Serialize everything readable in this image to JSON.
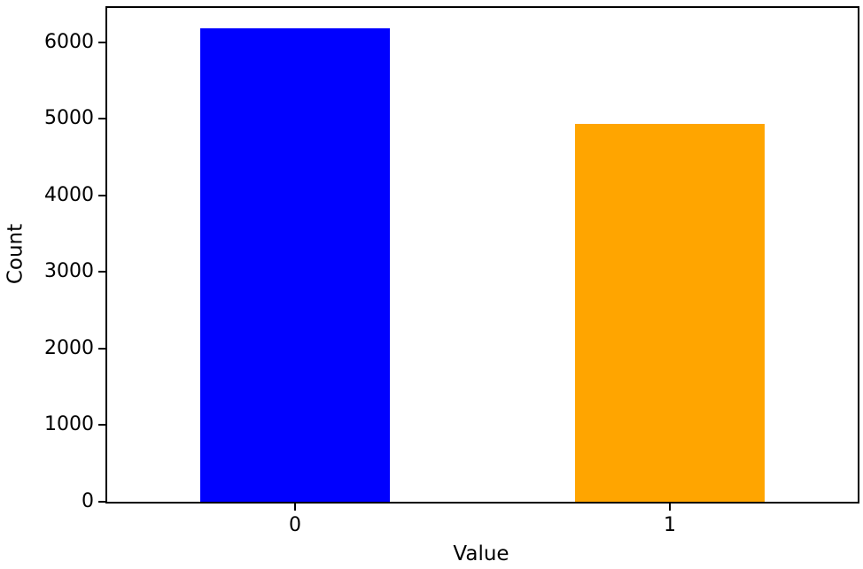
{
  "figure": {
    "background": "#ffffff",
    "axis_color": "#000000"
  },
  "chart_data": {
    "type": "bar",
    "title": "",
    "xlabel": "Value",
    "ylabel": "Count",
    "categories": [
      "0",
      "1"
    ],
    "values": [
      6180,
      4930
    ],
    "bar_colors": [
      "#0000ff",
      "#ffa500"
    ],
    "ylim": [
      0,
      6450
    ],
    "yticks": [
      0,
      1000,
      2000,
      3000,
      4000,
      5000,
      6000
    ],
    "ytick_labels": [
      "0",
      "1000",
      "2000",
      "3000",
      "4000",
      "5000",
      "6000"
    ],
    "grid": false,
    "legend": "none"
  }
}
